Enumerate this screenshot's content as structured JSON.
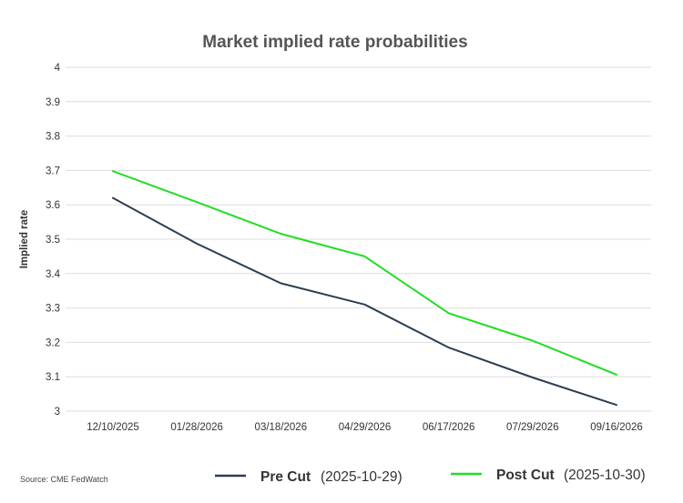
{
  "chart_data": {
    "type": "line",
    "title": "Market implied rate probabilities",
    "xlabel": "",
    "ylabel": "Implied rate",
    "categories": [
      "12/10/2025",
      "01/28/2026",
      "03/18/2026",
      "04/29/2026",
      "06/17/2026",
      "07/29/2026",
      "09/16/2026"
    ],
    "ylim": [
      3,
      4
    ],
    "yticks": [
      "3",
      "3.1",
      "3.2",
      "3.3",
      "3.4",
      "3.5",
      "3.6",
      "3.7",
      "3.8",
      "3.9",
      "4"
    ],
    "grid": true,
    "legend_position": "bottom",
    "series": [
      {
        "name": "Pre Cut",
        "date_label": "(2025-10-29)",
        "color": "#2c3e50",
        "values": [
          3.62,
          3.487,
          3.372,
          3.31,
          3.185,
          3.098,
          3.018
        ]
      },
      {
        "name": "Post Cut",
        "date_label": "(2025-10-30)",
        "color": "#22dd22",
        "values": [
          3.698,
          3.608,
          3.516,
          3.45,
          3.285,
          3.205,
          3.106
        ]
      }
    ],
    "source": "Source: CME FedWatch"
  }
}
